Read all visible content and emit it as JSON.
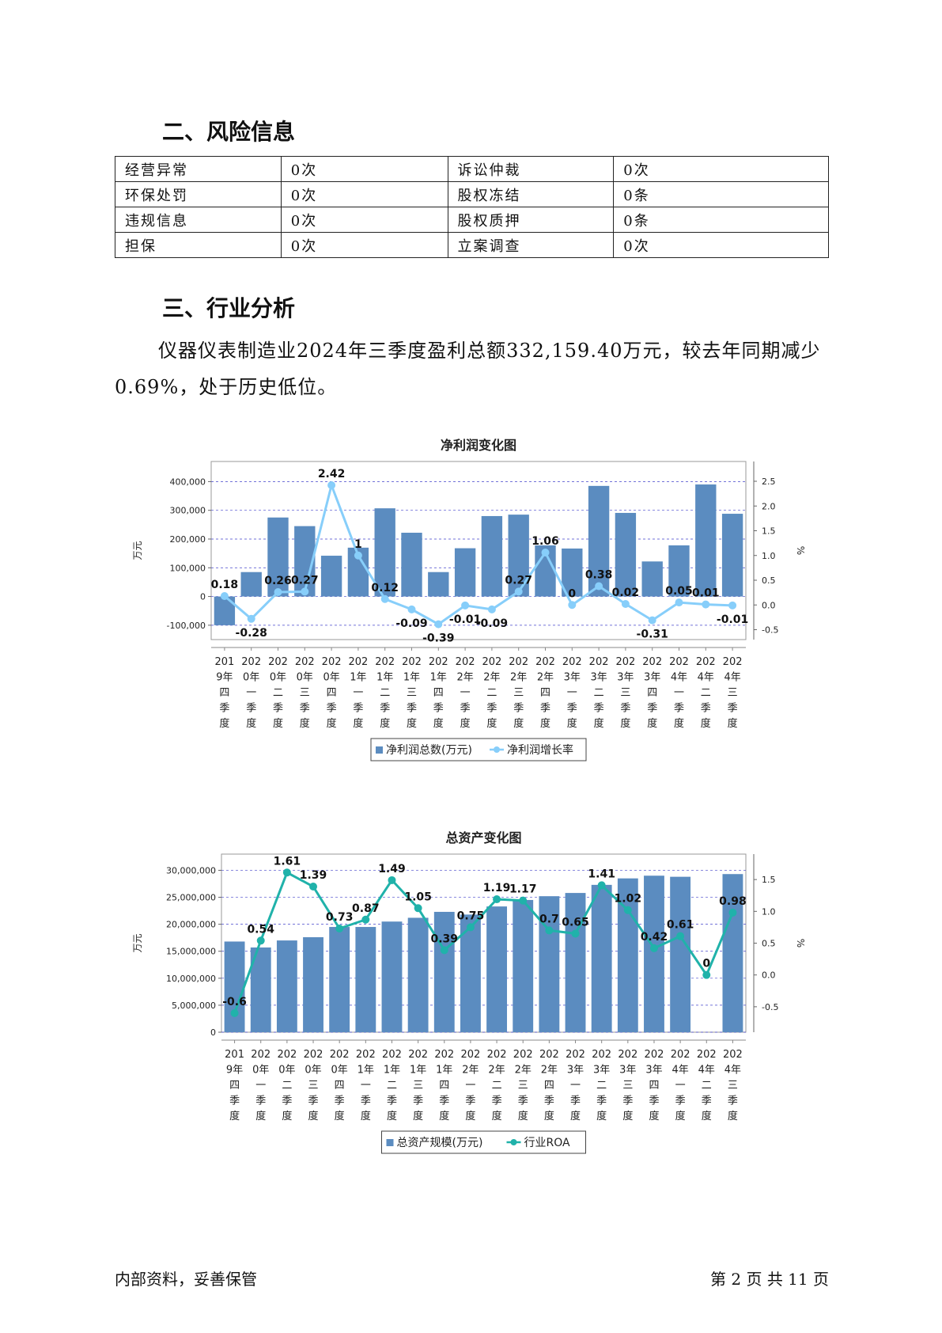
{
  "sections": {
    "risk_title": "二、风险信息",
    "industry_title": "三、行业分析"
  },
  "risk_table": [
    [
      "经营异常",
      "0次",
      "诉讼仲裁",
      "0次"
    ],
    [
      "环保处罚",
      "0次",
      "股权冻结",
      "0条"
    ],
    [
      "违规信息",
      "0次",
      "股权质押",
      "0条"
    ],
    [
      "担保",
      "0次",
      "立案调查",
      "0次"
    ]
  ],
  "analysis_text": "仪器仪表制造业2024年三季度盈利总额332,159.40万元，较去年同期减少0.69%，处于历史低位。",
  "footer": {
    "left": "内部资料，妥善保管",
    "right": "第 2 页  共 11 页"
  },
  "chart_data": [
    {
      "type": "bar",
      "title": "净利润变化图",
      "ylabel": "万元",
      "y2label": "%",
      "ylim": [
        -150000,
        470000
      ],
      "y2lim": [
        -0.7,
        2.9
      ],
      "yticks": [
        "400,000",
        "300,000",
        "200,000",
        "100,000",
        "0",
        "-100,000"
      ],
      "y2ticks": [
        "2.5",
        "2.0",
        "1.5",
        "1.0",
        "0.5",
        "0.0",
        "-0.5"
      ],
      "grid": true,
      "legend_position": "bottom",
      "categories": [
        [
          "201",
          "9年",
          "四",
          "季",
          "度"
        ],
        [
          "202",
          "0年",
          "一",
          "季",
          "度"
        ],
        [
          "202",
          "0年",
          "二",
          "季",
          "度"
        ],
        [
          "202",
          "0年",
          "三",
          "季",
          "度"
        ],
        [
          "202",
          "0年",
          "四",
          "季",
          "度"
        ],
        [
          "202",
          "1年",
          "一",
          "季",
          "度"
        ],
        [
          "202",
          "1年",
          "二",
          "季",
          "度"
        ],
        [
          "202",
          "1年",
          "三",
          "季",
          "度"
        ],
        [
          "202",
          "1年",
          "四",
          "季",
          "度"
        ],
        [
          "202",
          "2年",
          "一",
          "季",
          "度"
        ],
        [
          "202",
          "2年",
          "二",
          "季",
          "度"
        ],
        [
          "202",
          "2年",
          "三",
          "季",
          "度"
        ],
        [
          "202",
          "2年",
          "四",
          "季",
          "度"
        ],
        [
          "202",
          "3年",
          "一",
          "季",
          "度"
        ],
        [
          "202",
          "3年",
          "二",
          "季",
          "度"
        ],
        [
          "202",
          "3年",
          "三",
          "季",
          "度"
        ],
        [
          "202",
          "3年",
          "四",
          "季",
          "度"
        ],
        [
          "202",
          "4年",
          "一",
          "季",
          "度"
        ],
        [
          "202",
          "4年",
          "二",
          "季",
          "度"
        ],
        [
          "202",
          "4年",
          "三",
          "季",
          "度"
        ]
      ],
      "series": [
        {
          "name": "净利润总数(万元)",
          "kind": "bar",
          "axis": "left",
          "color": "#5b8cc0",
          "values": [
            -100000,
            85000,
            275000,
            245000,
            142000,
            170000,
            307000,
            222000,
            85000,
            168000,
            280000,
            285000,
            178000,
            167000,
            385000,
            291000,
            122000,
            178000,
            390000,
            288000
          ]
        },
        {
          "name": "净利润增长率",
          "kind": "line",
          "axis": "right",
          "color": "#87cefa",
          "values": [
            0.18,
            -0.28,
            0.26,
            0.27,
            2.42,
            1,
            0.12,
            -0.09,
            -0.39,
            -0.01,
            -0.09,
            0.27,
            1.06,
            0,
            0.38,
            0.02,
            -0.31,
            0.05,
            0.01,
            -0.01
          ],
          "labels": [
            "0.18",
            "-0.28",
            "0.26",
            "0.27",
            "2.42",
            "1",
            "0.12",
            "-0.09",
            "-0.39",
            "-0.01",
            "-0.09",
            "0.27",
            "1.06",
            "0",
            "0.38",
            "0.02",
            "-0.31",
            "0.05",
            "0.01",
            "-0.01"
          ]
        }
      ]
    },
    {
      "type": "bar",
      "title": "总资产变化图",
      "ylabel": "万元",
      "y2label": "%",
      "ylim": [
        0,
        33000000
      ],
      "y2lim": [
        -0.9,
        1.9
      ],
      "yticks": [
        "30,000,000",
        "25,000,000",
        "20,000,000",
        "15,000,000",
        "10,000,000",
        "5,000,000",
        "0"
      ],
      "y2ticks": [
        "1.5",
        "1.0",
        "0.5",
        "0.0",
        "-0.5"
      ],
      "grid": true,
      "legend_position": "bottom",
      "categories": [
        [
          "201",
          "9年",
          "四",
          "季",
          "度"
        ],
        [
          "202",
          "0年",
          "一",
          "季",
          "度"
        ],
        [
          "202",
          "0年",
          "二",
          "季",
          "度"
        ],
        [
          "202",
          "0年",
          "三",
          "季",
          "度"
        ],
        [
          "202",
          "0年",
          "四",
          "季",
          "度"
        ],
        [
          "202",
          "1年",
          "一",
          "季",
          "度"
        ],
        [
          "202",
          "1年",
          "二",
          "季",
          "度"
        ],
        [
          "202",
          "1年",
          "三",
          "季",
          "度"
        ],
        [
          "202",
          "1年",
          "四",
          "季",
          "度"
        ],
        [
          "202",
          "2年",
          "一",
          "季",
          "度"
        ],
        [
          "202",
          "2年",
          "二",
          "季",
          "度"
        ],
        [
          "202",
          "2年",
          "三",
          "季",
          "度"
        ],
        [
          "202",
          "2年",
          "四",
          "季",
          "度"
        ],
        [
          "202",
          "3年",
          "一",
          "季",
          "度"
        ],
        [
          "202",
          "3年",
          "二",
          "季",
          "度"
        ],
        [
          "202",
          "3年",
          "三",
          "季",
          "度"
        ],
        [
          "202",
          "3年",
          "四",
          "季",
          "度"
        ],
        [
          "202",
          "4年",
          "一",
          "季",
          "度"
        ],
        [
          "202",
          "4年",
          "二",
          "季",
          "度"
        ],
        [
          "202",
          "4年",
          "三",
          "季",
          "度"
        ]
      ],
      "series": [
        {
          "name": "总资产规模(万元)",
          "kind": "bar",
          "axis": "left",
          "color": "#5b8cc0",
          "values": [
            16800000,
            15700000,
            17000000,
            17600000,
            19500000,
            19500000,
            20500000,
            21200000,
            22300000,
            21800000,
            23300000,
            24500000,
            25200000,
            25800000,
            27300000,
            28500000,
            29000000,
            28800000,
            0,
            29300000
          ]
        },
        {
          "name": "行业ROA",
          "kind": "line",
          "axis": "right",
          "color": "#20b2aa",
          "values": [
            -0.6,
            0.54,
            1.61,
            1.39,
            0.73,
            0.87,
            1.49,
            1.05,
            0.39,
            0.75,
            1.19,
            1.17,
            0.7,
            0.65,
            1.41,
            1.02,
            0.42,
            0.61,
            0,
            0.98
          ],
          "labels": [
            "-0.6",
            "0.54",
            "1.61",
            "1.39",
            "0.73",
            "0.87",
            "1.49",
            "1.05",
            "0.39",
            "0.75",
            "1.19",
            "1.17",
            "0.7",
            "0.65",
            "1.41",
            "1.02",
            "0.42",
            "0.61",
            "0",
            "0.98"
          ]
        }
      ]
    }
  ]
}
